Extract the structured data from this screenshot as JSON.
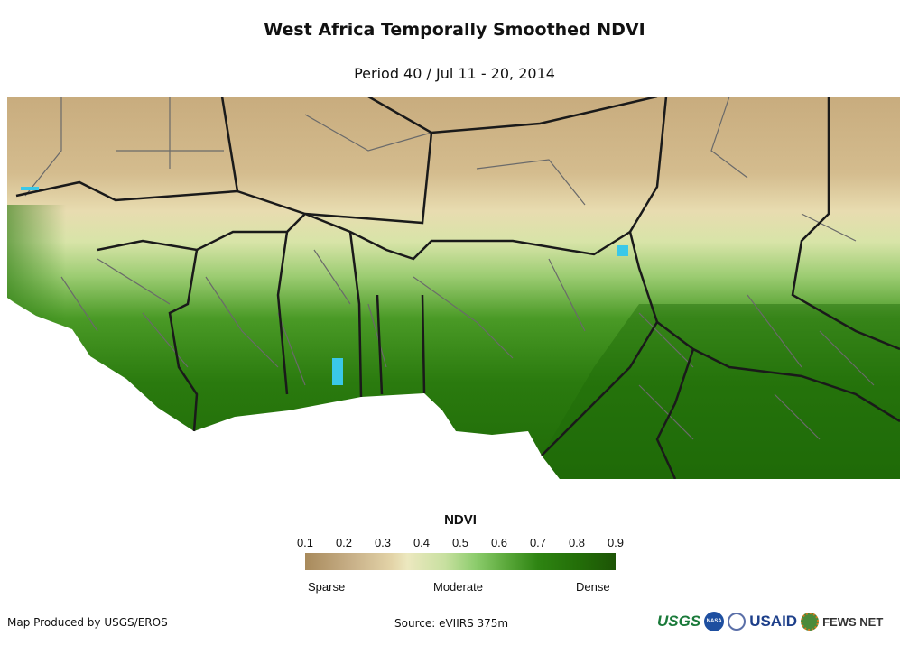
{
  "title": "West Africa Temporally Smoothed NDVI",
  "subtitle": "Period 40 / Jul 11 - 20, 2014",
  "legend": {
    "title": "NDVI",
    "ticks": [
      "0.1",
      "0.2",
      "0.3",
      "0.4",
      "0.5",
      "0.6",
      "0.7",
      "0.8",
      "0.9"
    ],
    "classes": [
      "Sparse",
      "Moderate",
      "Dense"
    ],
    "colors": [
      "#a88a5c",
      "#e3d4a8",
      "#ece8bf",
      "#8ccc6c",
      "#2e8412",
      "#1d5406"
    ]
  },
  "footer": {
    "credit": "Map Produced by USGS/EROS",
    "source": "Source: eVIIRS 375m",
    "logos": [
      "USGS",
      "NASA",
      "USAID",
      "FEWS NET"
    ]
  }
}
